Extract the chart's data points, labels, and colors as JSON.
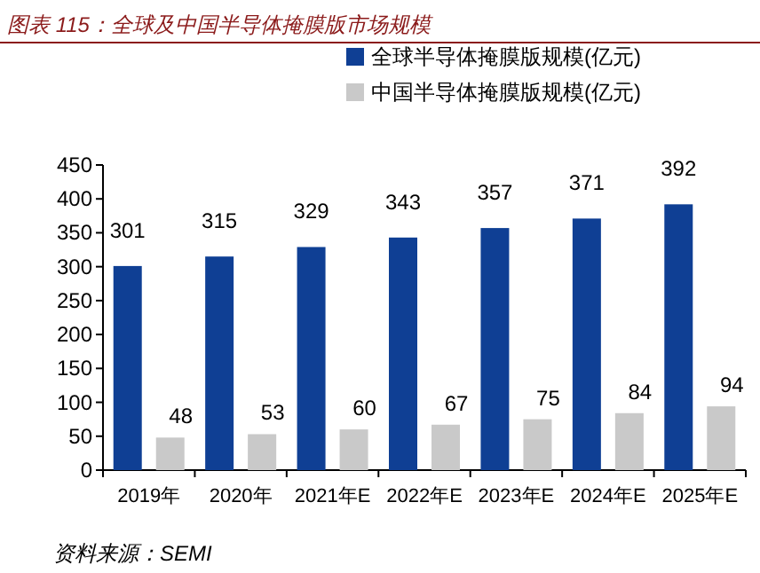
{
  "chart_data": {
    "type": "bar",
    "title": "图表 115：全球及中国半导体掩膜版市场规模",
    "categories": [
      "2019年",
      "2020年",
      "2021年E",
      "2022年E",
      "2023年E",
      "2024年E",
      "2025年E"
    ],
    "series": [
      {
        "name": "全球半导体掩膜版规模(亿元)",
        "color": "#0f3f94",
        "values": [
          301,
          315,
          329,
          343,
          357,
          371,
          392
        ]
      },
      {
        "name": "中国半导体掩膜版规模(亿元)",
        "color": "#c9c9c9",
        "values": [
          48,
          53,
          60,
          67,
          75,
          84,
          94
        ]
      }
    ],
    "ylim": [
      0,
      450
    ],
    "yticks": [
      0,
      50,
      100,
      150,
      200,
      250,
      300,
      350,
      400,
      450
    ],
    "data_labels": true,
    "legend": "top right",
    "grid": false,
    "annotations": [
      "资料来源：SEMI"
    ]
  }
}
